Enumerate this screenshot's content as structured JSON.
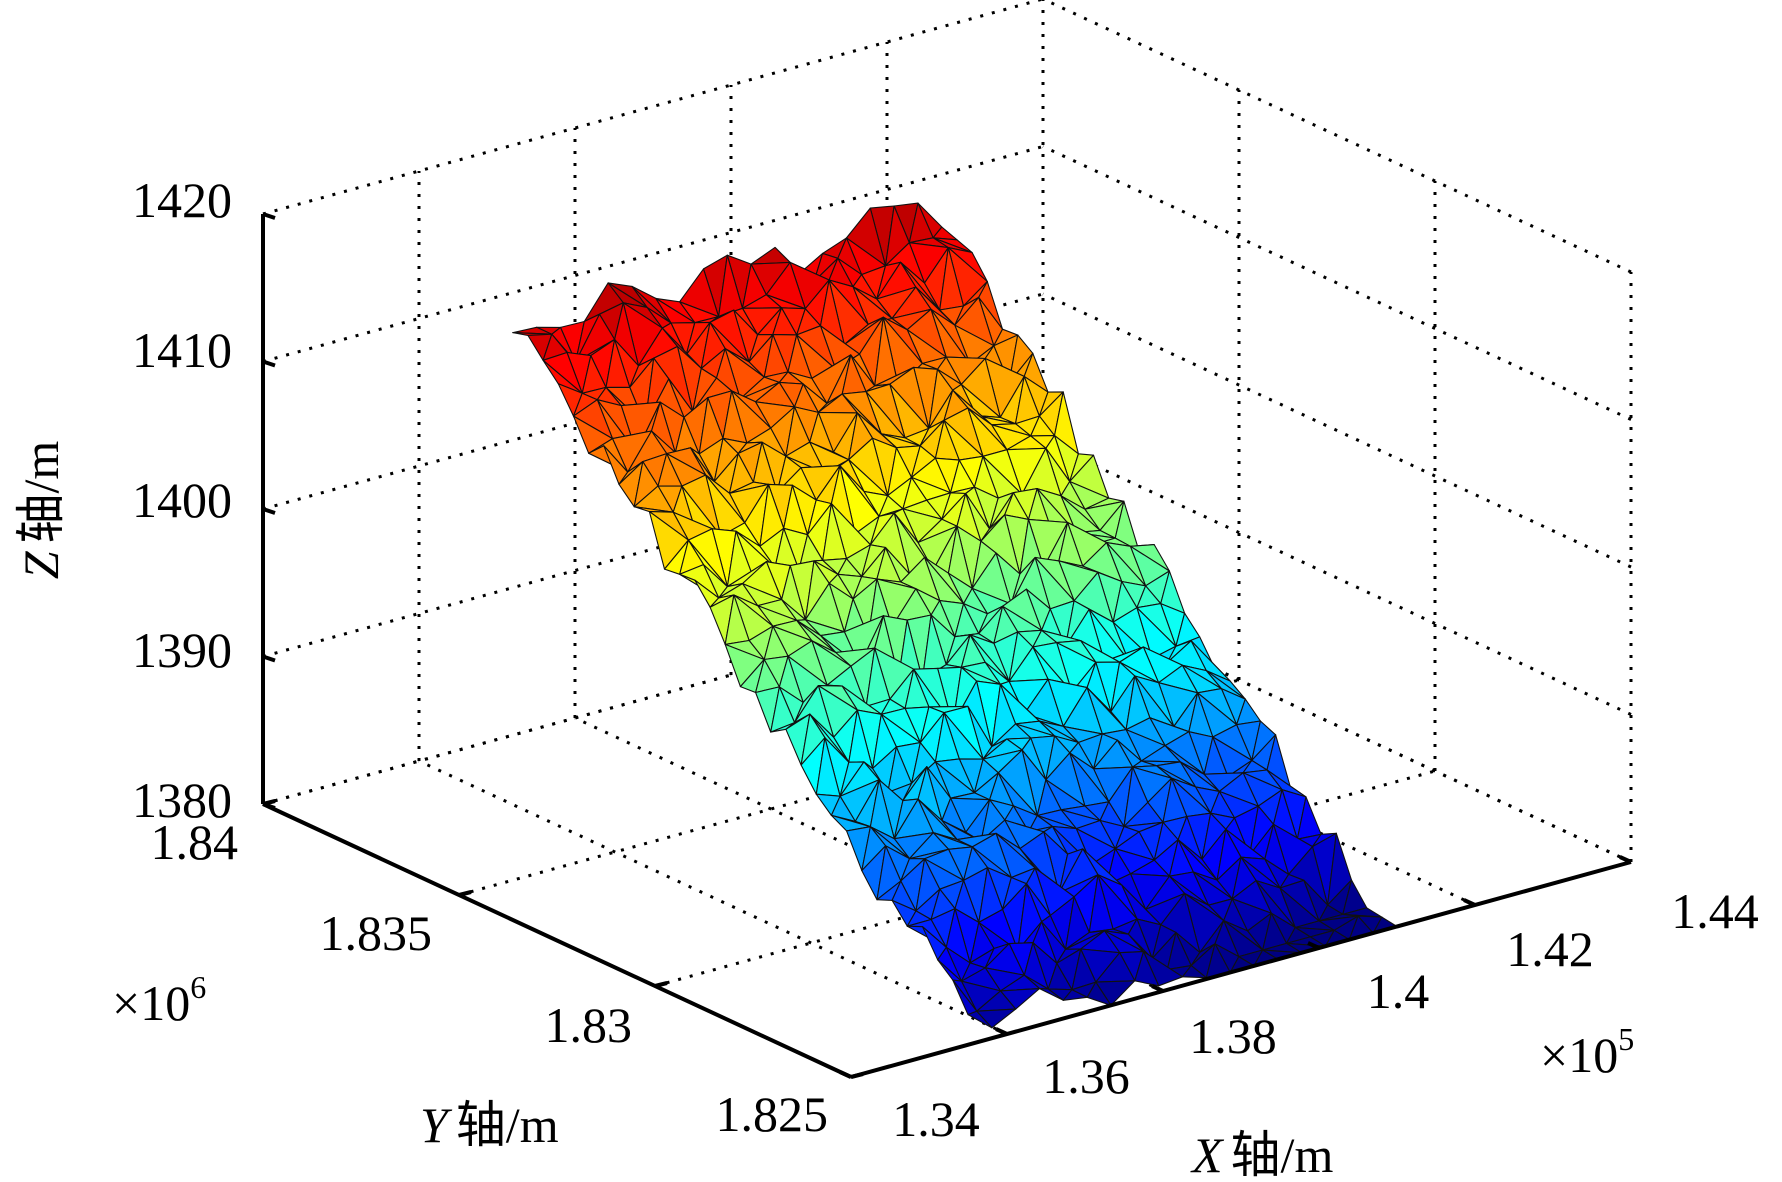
{
  "chart_data": {
    "type": "surface3d",
    "description_axes": "3D triangulated surface mesh colored by elevation (jet colormap)",
    "x_axis": {
      "label_var": "X",
      "label_unit": "轴/m",
      "ticks": [
        "1.34",
        "1.36",
        "1.38",
        "1.4",
        "1.42",
        "1.44"
      ],
      "tick_values": [
        1.34,
        1.36,
        1.38,
        1.4,
        1.42,
        1.44
      ],
      "range": [
        1.34,
        1.44
      ],
      "multiplier_base": "×10",
      "multiplier_exp": "5"
    },
    "y_axis": {
      "label_var": "Y",
      "label_unit": "轴/m",
      "ticks": [
        "1.825",
        "1.83",
        "1.835",
        "1.84"
      ],
      "tick_values": [
        1.825,
        1.83,
        1.835,
        1.84
      ],
      "range": [
        1.825,
        1.84
      ],
      "multiplier_base": "×10",
      "multiplier_exp": "6"
    },
    "z_axis": {
      "label_var": "Z",
      "label_unit": "轴/m",
      "ticks": [
        "1380",
        "1390",
        "1400",
        "1410",
        "1420"
      ],
      "tick_values": [
        1380,
        1390,
        1400,
        1410,
        1420
      ],
      "range": [
        1380,
        1420
      ]
    },
    "colormap": "jet",
    "color_range": [
      1380,
      1412
    ],
    "grid": true,
    "surface": {
      "x_range": [
        1.355,
        1.41
      ],
      "y_range": [
        1.825,
        1.839
      ],
      "z_min": 1380,
      "z_max": 1411
    }
  }
}
